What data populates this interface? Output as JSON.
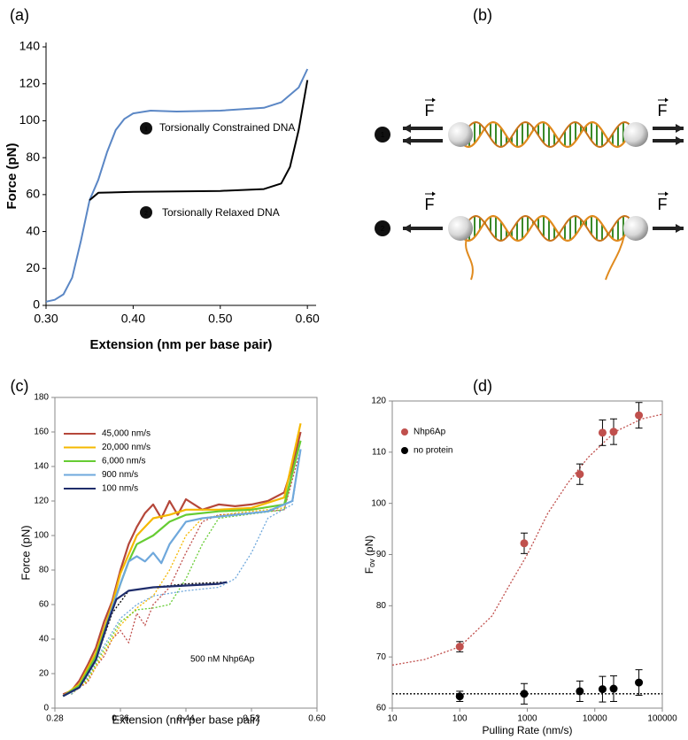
{
  "chart_data": [
    {
      "panel": "(a)",
      "type": "line",
      "xlabel": "Extension (nm per base pair)",
      "ylabel": "Force (pN)",
      "xlim": [
        0.3,
        0.61
      ],
      "ylim": [
        0,
        140
      ],
      "xticks": [
        {
          "value": 0.3,
          "label": "0.30"
        },
        {
          "value": 0.4,
          "label": "0.40"
        },
        {
          "value": 0.5,
          "label": "0.50"
        },
        {
          "value": 0.6,
          "label": "0.60"
        }
      ],
      "yticks": [
        0,
        20,
        40,
        60,
        80,
        100,
        120,
        140
      ],
      "series": [
        {
          "color": "#5b87c5",
          "x": [
            0.3,
            0.31,
            0.32,
            0.33,
            0.34,
            0.35,
            0.36,
            0.37,
            0.38,
            0.39,
            0.4,
            0.42,
            0.45,
            0.5,
            0.55,
            0.57,
            0.59,
            0.6
          ],
          "values": [
            2,
            3,
            6,
            15,
            35,
            57,
            68,
            83,
            95,
            101,
            104,
            105.5,
            105,
            105.5,
            107,
            110,
            118,
            128
          ]
        },
        {
          "color": "#000000",
          "x": [
            0.35,
            0.36,
            0.4,
            0.5,
            0.55,
            0.57,
            0.58,
            0.59,
            0.6
          ],
          "values": [
            57,
            61,
            61.5,
            62,
            63,
            66,
            75,
            95,
            122
          ]
        }
      ],
      "annotations": [
        {
          "marker": "1",
          "text": "Torsionally Constrained DNA"
        },
        {
          "marker": "2",
          "text": "Torsionally Relaxed DNA"
        }
      ]
    },
    {
      "panel": "(c)",
      "type": "line",
      "xlabel": "Extension (nm per base pair)",
      "ylabel": "Force (pN)",
      "frame": true,
      "legend_loc": "upper left",
      "xlim": [
        0.28,
        0.6
      ],
      "ylim": [
        0,
        180
      ],
      "xticks": [
        {
          "value": 0.28,
          "label": "0.28"
        },
        {
          "value": 0.36,
          "label": "0.36"
        },
        {
          "value": 0.44,
          "label": "0.44"
        },
        {
          "value": 0.52,
          "label": "0.52"
        },
        {
          "value": 0.6,
          "label": "0.60"
        }
      ],
      "yticks": [
        0,
        20,
        40,
        60,
        80,
        100,
        120,
        140,
        160,
        180
      ],
      "reference_series": [
        {
          "color": "#c0504d",
          "x": [
            0.3,
            0.31,
            0.32,
            0.33,
            0.34,
            0.35,
            0.36,
            0.37,
            0.38,
            0.39,
            0.4,
            0.42,
            0.44,
            0.46,
            0.48,
            0.52,
            0.56,
            0.58
          ],
          "values": [
            8,
            12,
            15,
            24,
            30,
            40,
            45,
            38,
            55,
            48,
            60,
            70,
            90,
            108,
            112,
            113,
            115,
            150
          ]
        },
        {
          "color": "#f5b800",
          "x": [
            0.3,
            0.32,
            0.34,
            0.36,
            0.38,
            0.4,
            0.42,
            0.44,
            0.46,
            0.5,
            0.56,
            0.58
          ],
          "values": [
            8,
            16,
            32,
            48,
            58,
            65,
            80,
            100,
            110,
            113,
            116,
            155
          ]
        },
        {
          "color": "#66cc33",
          "x": [
            0.3,
            0.32,
            0.34,
            0.36,
            0.38,
            0.4,
            0.42,
            0.44,
            0.46,
            0.48,
            0.56,
            0.58
          ],
          "values": [
            8,
            17,
            34,
            50,
            57,
            58,
            60,
            75,
            95,
            110,
            115,
            155
          ]
        },
        {
          "color": "#6fa8dc",
          "x": [
            0.3,
            0.32,
            0.34,
            0.36,
            0.38,
            0.4,
            0.44,
            0.48,
            0.5,
            0.52,
            0.54,
            0.57,
            0.58
          ],
          "values": [
            8,
            18,
            36,
            52,
            60,
            65,
            68,
            70,
            75,
            90,
            110,
            118,
            150
          ]
        },
        {
          "color": "#000000",
          "x": [
            0.29,
            0.31,
            0.33,
            0.35,
            0.37,
            0.4,
            0.44,
            0.49
          ],
          "values": [
            7,
            12,
            28,
            55,
            68,
            70,
            72,
            73
          ]
        }
      ],
      "series": [
        {
          "name": "45,000 nm/s",
          "color": "#b5473a",
          "x": [
            0.29,
            0.3,
            0.31,
            0.32,
            0.33,
            0.34,
            0.35,
            0.36,
            0.37,
            0.38,
            0.39,
            0.4,
            0.41,
            0.42,
            0.43,
            0.44,
            0.46,
            0.48,
            0.5,
            0.52,
            0.54,
            0.56,
            0.57,
            0.58
          ],
          "values": [
            8,
            10,
            16,
            25,
            35,
            50,
            62,
            80,
            95,
            105,
            113,
            118,
            110,
            120,
            112,
            121,
            115,
            118,
            117,
            118,
            120,
            125,
            140,
            160
          ]
        },
        {
          "name": "20,000 nm/s",
          "color": "#f5b800",
          "x": [
            0.29,
            0.31,
            0.33,
            0.35,
            0.36,
            0.38,
            0.4,
            0.42,
            0.44,
            0.48,
            0.52,
            0.56,
            0.58
          ],
          "values": [
            7,
            14,
            32,
            60,
            78,
            100,
            110,
            112,
            115,
            115,
            116,
            122,
            165
          ]
        },
        {
          "name": "6,000 nm/s",
          "color": "#66cc33",
          "x": [
            0.29,
            0.31,
            0.33,
            0.35,
            0.36,
            0.37,
            0.38,
            0.4,
            0.42,
            0.44,
            0.48,
            0.52,
            0.56,
            0.58
          ],
          "values": [
            7,
            13,
            30,
            58,
            72,
            85,
            95,
            100,
            108,
            112,
            114,
            115,
            118,
            155
          ]
        },
        {
          "name": "900 nm/s",
          "color": "#6fa8dc",
          "x": [
            0.29,
            0.31,
            0.33,
            0.35,
            0.36,
            0.37,
            0.38,
            0.39,
            0.4,
            0.41,
            0.42,
            0.44,
            0.46,
            0.5,
            0.54,
            0.57,
            0.58
          ],
          "values": [
            7,
            12,
            28,
            58,
            72,
            85,
            88,
            85,
            90,
            84,
            95,
            108,
            110,
            112,
            114,
            120,
            150
          ]
        },
        {
          "name": "100 nm/s",
          "color": "#1f2d6b",
          "x": [
            0.29,
            0.31,
            0.33,
            0.345,
            0.355,
            0.37,
            0.4,
            0.44,
            0.48,
            0.49
          ],
          "values": [
            7,
            12,
            28,
            50,
            63,
            68,
            70,
            71,
            72,
            73
          ]
        }
      ],
      "annotations": [
        {
          "text": "500 nM Nhp6Ap"
        }
      ]
    },
    {
      "panel": "(d)",
      "type": "scatter",
      "xlabel": "Pulling Rate (nm/s)",
      "ylabel_parts": [
        "F",
        "ov",
        " (pN)"
      ],
      "frame": true,
      "xscale": "log",
      "legend_loc": "upper left",
      "xlim": [
        10,
        100000
      ],
      "ylim": [
        60,
        120
      ],
      "xticks": [
        10,
        100,
        1000,
        10000,
        100000
      ],
      "yticks": [
        60,
        70,
        80,
        90,
        100,
        110,
        120
      ],
      "fits": [
        {
          "color": "#c0504d",
          "x": [
            10,
            30,
            100,
            300,
            600,
            1000,
            2000,
            4000,
            8000,
            20000,
            50000,
            100000
          ],
          "values": [
            68.4,
            69.5,
            72,
            78,
            85,
            90,
            98,
            104,
            109,
            114,
            116.5,
            117.4
          ]
        },
        {
          "color": "#000000",
          "x": [
            10,
            100000
          ],
          "values": [
            62.8,
            62.8
          ]
        }
      ],
      "series": [
        {
          "name": "Nhp6Ap",
          "color": "#c0504d",
          "x": [
            100,
            900,
            6000,
            13000,
            19000,
            45000
          ],
          "values": [
            72,
            92.2,
            105.7,
            113.8,
            114,
            117.2
          ],
          "errors": [
            1,
            2,
            2,
            2.5,
            2.5,
            2.5
          ]
        },
        {
          "name": "no protein",
          "color": "#000000",
          "x": [
            100,
            900,
            6000,
            13000,
            19000,
            45000
          ],
          "values": [
            62.3,
            62.8,
            63.3,
            63.7,
            63.8,
            65
          ],
          "errors": [
            1,
            2,
            2,
            2.5,
            2.5,
            2.5
          ]
        }
      ]
    }
  ],
  "diagram": {
    "panel": "(b)",
    "rows": [
      {
        "marker": "1",
        "left_force": "F",
        "right_force": "F"
      },
      {
        "marker": "2",
        "left_force": "F",
        "right_force": "F"
      }
    ]
  }
}
